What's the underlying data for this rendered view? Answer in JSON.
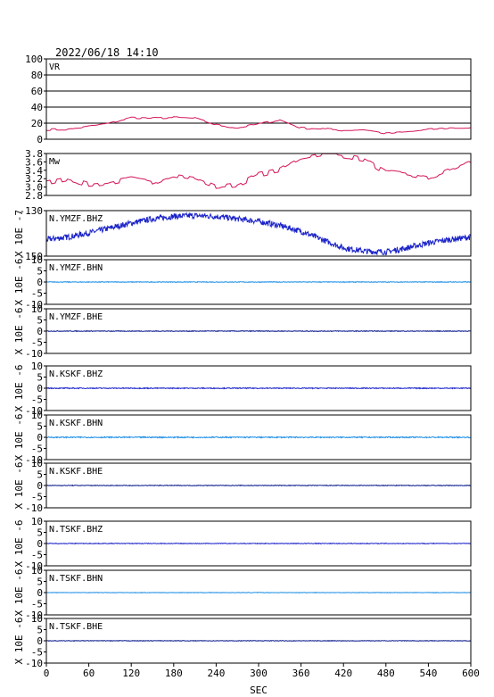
{
  "header": {
    "datetime": "2022/06/18  14:10"
  },
  "chart_data": {
    "type": "line",
    "xlabel": "SEC",
    "xlim": [
      0,
      600
    ],
    "xticks": [
      "0",
      "60",
      "120",
      "180",
      "240",
      "300",
      "360",
      "420",
      "480",
      "540",
      "600"
    ],
    "colors": {
      "vr": "#d4145a",
      "bhz": "#1a22c8",
      "bhn": "#1e8fe6",
      "bhe": "#0a1a8c"
    },
    "panels": [
      {
        "id": "vr",
        "label": "VR",
        "ylabel": "",
        "ylim": [
          0,
          100
        ],
        "yticks": [
          "100",
          "80",
          "60",
          "40",
          "20",
          "0"
        ],
        "gridlines": [
          20,
          40,
          60,
          80
        ],
        "color": "vr",
        "noise": 1.2,
        "x": [
          0,
          30,
          60,
          90,
          120,
          150,
          180,
          210,
          240,
          270,
          300,
          330,
          360,
          390,
          420,
          450,
          480,
          510,
          540,
          570,
          600
        ],
        "y": [
          12,
          12,
          16,
          20,
          27,
          26,
          27,
          26,
          18,
          14,
          19,
          24,
          14,
          13,
          11,
          12,
          7,
          9,
          12,
          14,
          14
        ]
      },
      {
        "id": "mw",
        "label": "Mw",
        "ylabel": "",
        "ylim": [
          2.8,
          3.8
        ],
        "yticks": [
          "3.8",
          "3.6",
          "3.4",
          "3.2",
          "3.0",
          "2.8"
        ],
        "gridlines": [],
        "color": "vr",
        "noise": 0.06,
        "x": [
          0,
          30,
          60,
          90,
          120,
          150,
          180,
          210,
          240,
          270,
          300,
          330,
          360,
          390,
          420,
          450,
          480,
          510,
          540,
          570,
          600
        ],
        "y": [
          3.1,
          3.2,
          3.05,
          3.1,
          3.2,
          3.1,
          3.3,
          3.2,
          3.0,
          3.05,
          3.3,
          3.4,
          3.7,
          3.8,
          3.75,
          3.65,
          3.35,
          3.3,
          3.2,
          3.4,
          3.6
        ]
      },
      {
        "id": "ymzf-bhz",
        "label": "N.YMZF.BHZ",
        "ylabel": "X 10E -7",
        "ylim": [
          -180,
          -125
        ],
        "yticks": [
          "-130",
          "-150"
        ],
        "gridlines": [],
        "color": "bhz",
        "noise": 3.5,
        "x": [
          0,
          30,
          60,
          90,
          120,
          150,
          180,
          210,
          240,
          270,
          300,
          330,
          360,
          390,
          420,
          450,
          480,
          510,
          540,
          570,
          600
        ],
        "y": [
          -160,
          -157,
          -152,
          -146,
          -140,
          -135,
          -132,
          -131,
          -132,
          -135,
          -138,
          -143,
          -150,
          -160,
          -170,
          -174,
          -175,
          -170,
          -164,
          -160,
          -157
        ]
      },
      {
        "id": "ymzf-bhn",
        "label": "N.YMZF.BHN",
        "ylabel": "X 10E -6",
        "ylim": [
          -10,
          10
        ],
        "yticks": [
          "10",
          "5",
          "0",
          "-5",
          "-10"
        ],
        "gridlines": [],
        "color": "bhn",
        "noise": 0.15,
        "x": [
          0,
          600
        ],
        "y": [
          0,
          0
        ]
      },
      {
        "id": "ymzf-bhe",
        "label": "N.YMZF.BHE",
        "ylabel": "X 10E -6",
        "ylim": [
          -10,
          10
        ],
        "yticks": [
          "10",
          "5",
          "0",
          "-5",
          "-10"
        ],
        "gridlines": [],
        "color": "bhe",
        "noise": 0.15,
        "x": [
          0,
          600
        ],
        "y": [
          0,
          0
        ]
      },
      {
        "id": "kskf-bhz",
        "label": "N.KSKF.BHZ",
        "ylabel": "X 10E -6",
        "ylim": [
          -10,
          10
        ],
        "yticks": [
          "10",
          "5",
          "0",
          "-5",
          "-10"
        ],
        "gridlines": [],
        "color": "bhz",
        "noise": 0.2,
        "x": [
          0,
          600
        ],
        "y": [
          0,
          0
        ]
      },
      {
        "id": "kskf-bhn",
        "label": "N.KSKF.BHN",
        "ylabel": "X 10E -6",
        "ylim": [
          -10,
          10
        ],
        "yticks": [
          "10",
          "5",
          "0",
          "-5",
          "-10"
        ],
        "gridlines": [],
        "color": "bhn",
        "noise": 0.25,
        "x": [
          0,
          600
        ],
        "y": [
          0,
          0
        ]
      },
      {
        "id": "kskf-bhe",
        "label": "N.KSKF.BHE",
        "ylabel": "X 10E -6",
        "ylim": [
          -10,
          10
        ],
        "yticks": [
          "10",
          "5",
          "0",
          "-5",
          "-10"
        ],
        "gridlines": [],
        "color": "bhe",
        "noise": 0.15,
        "x": [
          0,
          600
        ],
        "y": [
          0,
          0
        ]
      },
      {
        "id": "tskf-bhz",
        "label": "N.TSKF.BHZ",
        "ylabel": "X 10E -6",
        "ylim": [
          -10,
          10
        ],
        "yticks": [
          "10",
          "5",
          "0",
          "-5",
          "-10"
        ],
        "gridlines": [],
        "color": "bhz",
        "noise": 0.15,
        "x": [
          0,
          600
        ],
        "y": [
          0,
          0
        ]
      },
      {
        "id": "tskf-bhn",
        "label": "N.TSKF.BHN",
        "ylabel": "X 10E -6",
        "ylim": [
          -10,
          10
        ],
        "yticks": [
          "10",
          "5",
          "0",
          "-5",
          "-10"
        ],
        "gridlines": [],
        "color": "bhn",
        "noise": 0.1,
        "x": [
          0,
          600
        ],
        "y": [
          0,
          0
        ]
      },
      {
        "id": "tskf-bhe",
        "label": "N.TSKF.BHE",
        "ylabel": "X 10E -6",
        "ylim": [
          -10,
          10
        ],
        "yticks": [
          "10",
          "5",
          "0",
          "-5",
          "-10"
        ],
        "gridlines": [],
        "color": "bhe",
        "noise": 0.12,
        "x": [
          0,
          600
        ],
        "y": [
          0,
          0
        ]
      }
    ]
  }
}
